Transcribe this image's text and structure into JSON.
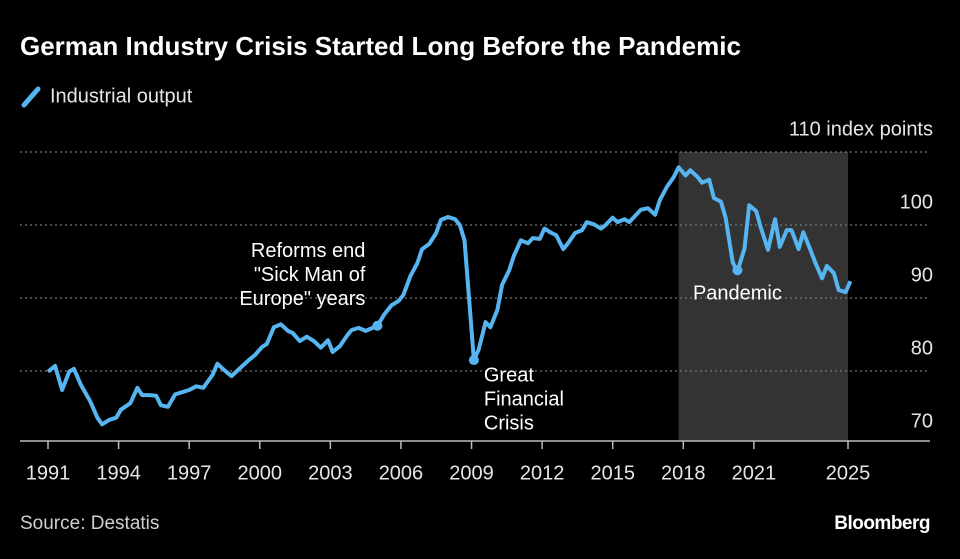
{
  "chart_data": {
    "type": "line",
    "title": "German Industry Crisis Started Long Before the Pandemic",
    "source": "Source: Destatis",
    "brand": "Bloomberg",
    "x": [
      1991.0,
      1991.3,
      1991.6,
      1991.9,
      1992.1,
      1992.4,
      1992.8,
      1993.1,
      1993.3,
      1993.6,
      1993.9,
      1994.1,
      1994.5,
      1994.8,
      1995.0,
      1995.3,
      1995.6,
      1995.8,
      1996.1,
      1996.4,
      1996.7,
      1997.0,
      1997.3,
      1997.6,
      1998.0,
      1998.2,
      1998.5,
      1998.8,
      1999.2,
      1999.5,
      1999.8,
      2000.1,
      2000.3,
      2000.6,
      2000.9,
      2001.2,
      2001.4,
      2001.7,
      2002.0,
      2002.3,
      2002.6,
      2002.9,
      2003.1,
      2003.4,
      2003.7,
      2003.9,
      2004.2,
      2004.5,
      2004.8,
      2005.0,
      2005.3,
      2005.6,
      2005.9,
      2006.1,
      2006.4,
      2006.7,
      2006.9,
      2007.2,
      2007.5,
      2007.7,
      2008.0,
      2008.3,
      2008.5,
      2008.7,
      2008.9,
      2009.1,
      2009.3,
      2009.6,
      2009.8,
      2010.1,
      2010.3,
      2010.6,
      2010.8,
      2011.1,
      2011.4,
      2011.6,
      2011.9,
      2012.1,
      2012.4,
      2012.6,
      2012.9,
      2013.1,
      2013.4,
      2013.7,
      2013.9,
      2014.2,
      2014.5,
      2014.7,
      2015.0,
      2015.2,
      2015.5,
      2015.7,
      2016.0,
      2016.2,
      2016.5,
      2016.8,
      2017.0,
      2017.3,
      2017.6,
      2017.8,
      2018.1,
      2018.3,
      2018.6,
      2018.8,
      2019.1,
      2019.3,
      2019.6,
      2019.8,
      2020.1,
      2020.3,
      2020.6,
      2020.8,
      2021.1,
      2021.3,
      2021.6,
      2021.9,
      2022.1,
      2022.4,
      2022.6,
      2022.9,
      2023.1,
      2023.4,
      2023.6,
      2023.9,
      2024.1,
      2024.4,
      2024.6,
      2024.9,
      2025.1
    ],
    "series": [
      {
        "name": "Industrial output",
        "color": "#56b4f0",
        "values": [
          79.9,
          80.7,
          77.4,
          79.9,
          80.3,
          78.1,
          75.8,
          73.6,
          72.7,
          73.3,
          73.6,
          74.7,
          75.6,
          77.7,
          76.7,
          76.7,
          76.6,
          75.3,
          75.1,
          76.8,
          77.1,
          77.4,
          77.9,
          77.7,
          79.5,
          81.0,
          80.1,
          79.3,
          80.5,
          81.4,
          82.2,
          83.3,
          83.7,
          86.0,
          86.4,
          85.5,
          85.2,
          84.1,
          84.7,
          84.1,
          83.2,
          84.2,
          82.6,
          83.4,
          84.8,
          85.6,
          85.9,
          85.5,
          85.9,
          86.2,
          87.8,
          89.0,
          89.6,
          90.4,
          93.0,
          94.8,
          96.7,
          97.4,
          98.9,
          100.7,
          101.1,
          100.8,
          100.0,
          97.9,
          89.7,
          81.5,
          82.9,
          86.7,
          86.0,
          88.4,
          91.8,
          93.8,
          95.8,
          97.9,
          97.5,
          98.2,
          98.1,
          99.5,
          98.9,
          98.6,
          96.7,
          97.5,
          98.9,
          99.3,
          100.4,
          100.1,
          99.5,
          100.0,
          101.0,
          100.4,
          100.8,
          100.4,
          101.4,
          102.1,
          102.3,
          101.4,
          103.4,
          105.2,
          106.6,
          107.9,
          106.8,
          107.5,
          106.6,
          105.8,
          106.2,
          103.7,
          103.2,
          101.0,
          94.9,
          93.6,
          96.8,
          102.7,
          101.9,
          99.6,
          96.6,
          100.8,
          97.0,
          99.3,
          99.3,
          96.7,
          99.0,
          96.6,
          94.9,
          92.7,
          94.4,
          93.4,
          91.1,
          90.8,
          92.3
        ]
      }
    ],
    "xlim": [
      1991,
      2025
    ],
    "xticks": [
      1991,
      1994,
      1997,
      2000,
      2003,
      2006,
      2009,
      2012,
      2015,
      2018,
      2021,
      2025
    ],
    "ylim": [
      70,
      110
    ],
    "yticks": [
      {
        "value": 110,
        "label": "110 index points"
      },
      100,
      90,
      80,
      70
    ],
    "grid": true,
    "shaded_range": [
      2017.8,
      2025
    ],
    "annotations": [
      {
        "text": [
          "Reforms end",
          "\"Sick Man of",
          "Europe\" years"
        ],
        "x": 2005.0,
        "y": 86.2
      },
      {
        "text": [
          "Great",
          "Financial",
          "Crisis"
        ],
        "x": 2009.1,
        "y": 81.5
      },
      {
        "text": [
          "Pandemic"
        ],
        "x": 2020.3,
        "y": 93.8
      }
    ]
  }
}
